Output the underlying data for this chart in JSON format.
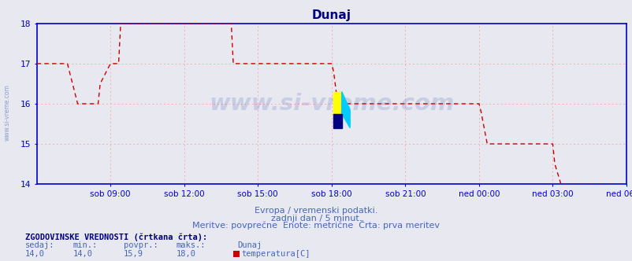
{
  "title": "Dunaj",
  "title_color": "#000080",
  "background_color": "#e8e8f0",
  "plot_bg_color": "#e8e8f0",
  "line_color": "#cc0000",
  "grid_color": "#ffaaaa",
  "axis_color": "#0000cc",
  "spine_color": "#0000cc",
  "ylim": [
    14,
    18
  ],
  "yticks": [
    14,
    15,
    16,
    17,
    18
  ],
  "xlim": [
    0,
    288
  ],
  "xtick_labels": [
    "sob 09:00",
    "sob 12:00",
    "sob 15:00",
    "sob 18:00",
    "sob 21:00",
    "ned 00:00",
    "ned 03:00",
    "ned 06:00"
  ],
  "xtick_positions": [
    36,
    72,
    108,
    144,
    180,
    216,
    252,
    288
  ],
  "footer_line1": "Evropa / vremenski podatki.",
  "footer_line2": "zadnji dan / 5 minut.",
  "footer_line3": "Meritve: povprečne  Enote: metrične  Črta: prva meritev",
  "footer_color": "#4466bb",
  "stats_header": "ZGODOVINSKE VREDNOSTI (črtkana črta):",
  "stats_col1_label": "sedaj:",
  "stats_col2_label": "min.:",
  "stats_col3_label": "povpr.:",
  "stats_col4_label": "maks.:",
  "stats_col5_label": "Dunaj",
  "stats_col1_val": "14,0",
  "stats_col2_val": "14,0",
  "stats_col3_val": "15,9",
  "stats_col4_val": "18,0",
  "stats_legend_label": "temperatura[C]",
  "watermark": "www.si-vreme.com",
  "watermark_color": "#3355aa",
  "watermark_alpha": 0.18,
  "side_watermark": "www.si-vreme.com",
  "side_watermark_color": "#3355aa",
  "side_watermark_alpha": 0.5,
  "logo_yellow": "#ffff00",
  "logo_cyan": "#00ccff",
  "logo_blue": "#000080",
  "segment_data": [
    {
      "t": 0,
      "v": 17.0
    },
    {
      "t": 15,
      "v": 17.0
    },
    {
      "t": 16,
      "v": 16.8
    },
    {
      "t": 20,
      "v": 16.0
    },
    {
      "t": 21,
      "v": 16.0
    },
    {
      "t": 30,
      "v": 16.0
    },
    {
      "t": 31,
      "v": 16.5
    },
    {
      "t": 36,
      "v": 17.0
    },
    {
      "t": 40,
      "v": 17.0
    },
    {
      "t": 41,
      "v": 18.0
    },
    {
      "t": 95,
      "v": 18.0
    },
    {
      "t": 96,
      "v": 17.0
    },
    {
      "t": 144,
      "v": 17.0
    },
    {
      "t": 145,
      "v": 16.8
    },
    {
      "t": 147,
      "v": 16.0
    },
    {
      "t": 216,
      "v": 16.0
    },
    {
      "t": 217,
      "v": 15.8
    },
    {
      "t": 220,
      "v": 15.0
    },
    {
      "t": 252,
      "v": 15.0
    },
    {
      "t": 253,
      "v": 14.5
    },
    {
      "t": 256,
      "v": 14.0
    },
    {
      "t": 288,
      "v": 14.0
    }
  ]
}
